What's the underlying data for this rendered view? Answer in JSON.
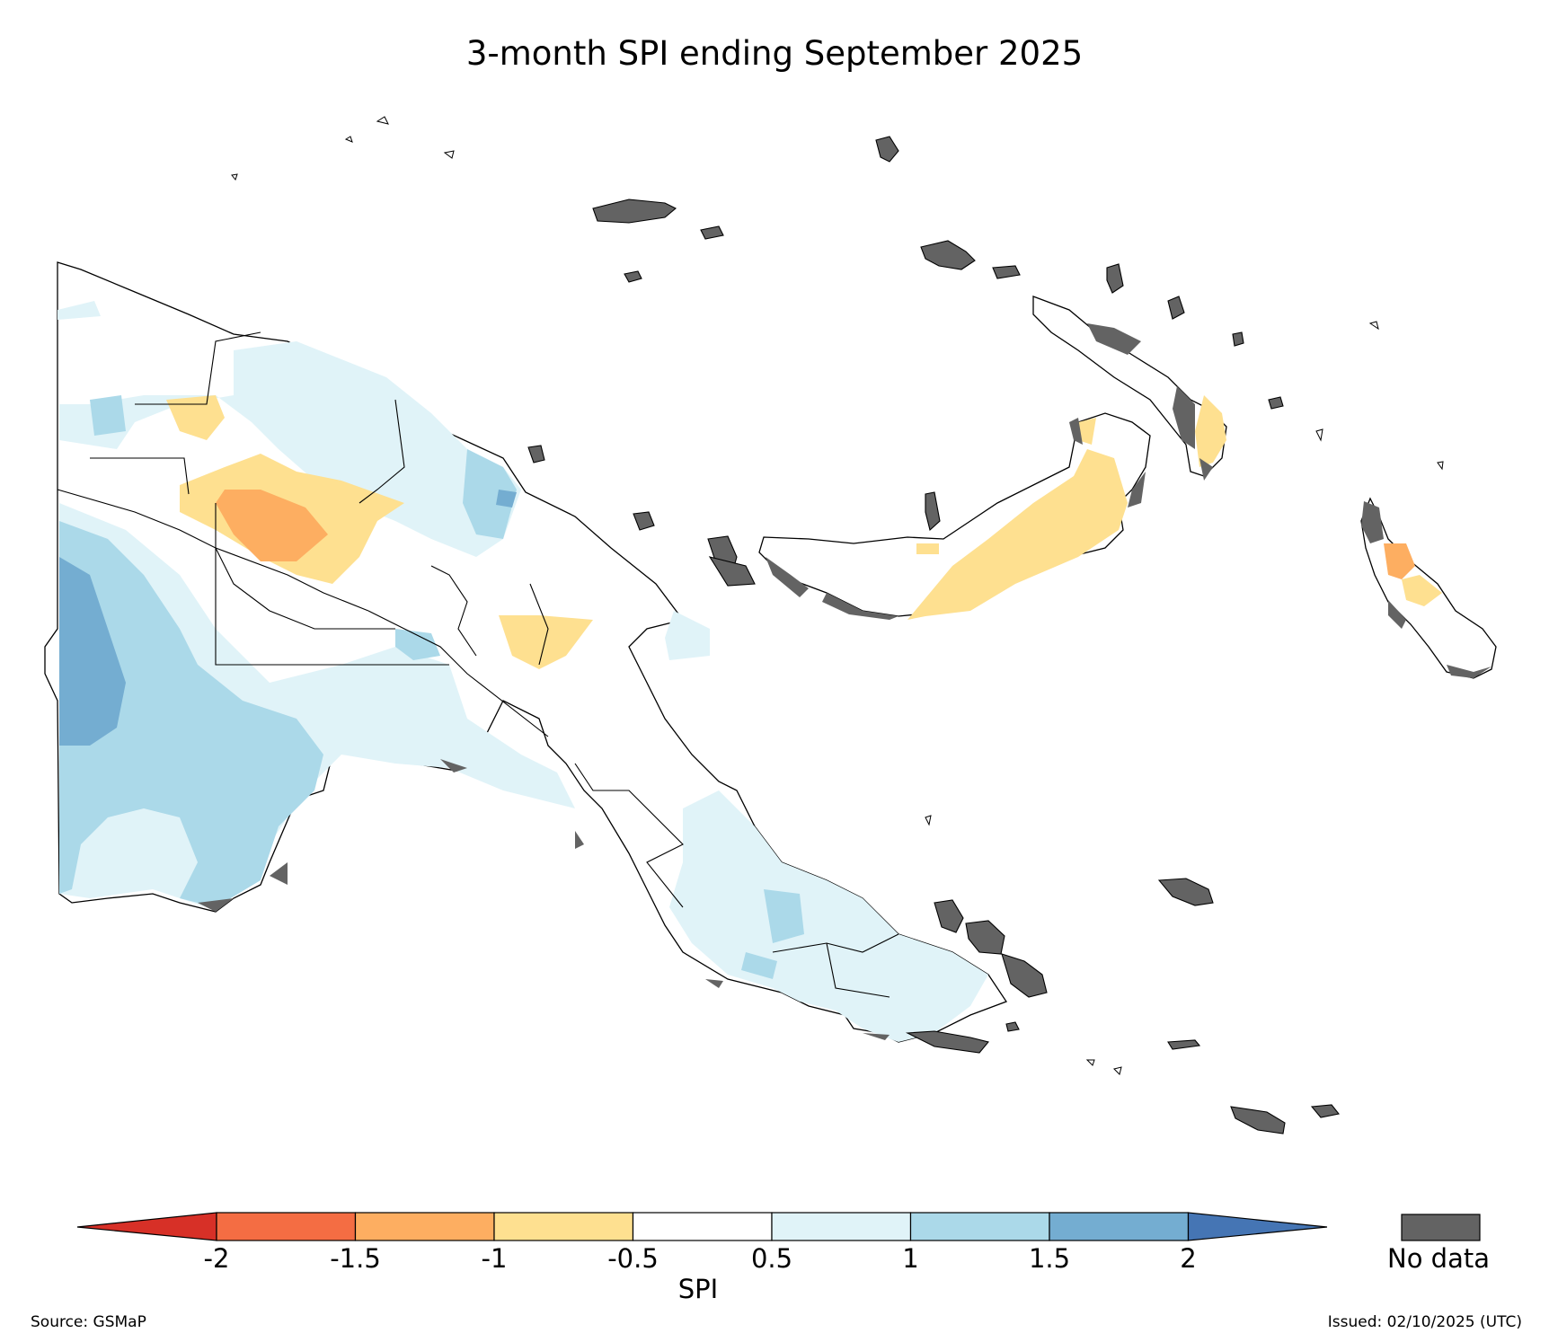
{
  "title": "3-month SPI ending September 2025",
  "legend": {
    "label": "SPI",
    "ticks": [
      "-2",
      "-1.5",
      "-1",
      "-0.5",
      "0.5",
      "1",
      "1.5",
      "2"
    ],
    "bins": [
      {
        "range": "< -2",
        "color": "#d73027"
      },
      {
        "range": "-2 to -1.5",
        "color": "#f46d43"
      },
      {
        "range": "-1.5 to -1",
        "color": "#fdae61"
      },
      {
        "range": "-1 to -0.5",
        "color": "#fee090"
      },
      {
        "range": "-0.5 to 0.5",
        "color": "#ffffff"
      },
      {
        "range": "0.5 to 1",
        "color": "#e0f3f8"
      },
      {
        "range": "1 to 1.5",
        "color": "#abd9e9"
      },
      {
        "range": "1.5 to 2",
        "color": "#74add1"
      },
      {
        "range": "> 2",
        "color": "#4575b4"
      }
    ],
    "no_data_label": "No data",
    "no_data_color": "#636363"
  },
  "footer": {
    "source": "Source: GSMaP",
    "issued": "Issued: 02/10/2025 (UTC)"
  }
}
